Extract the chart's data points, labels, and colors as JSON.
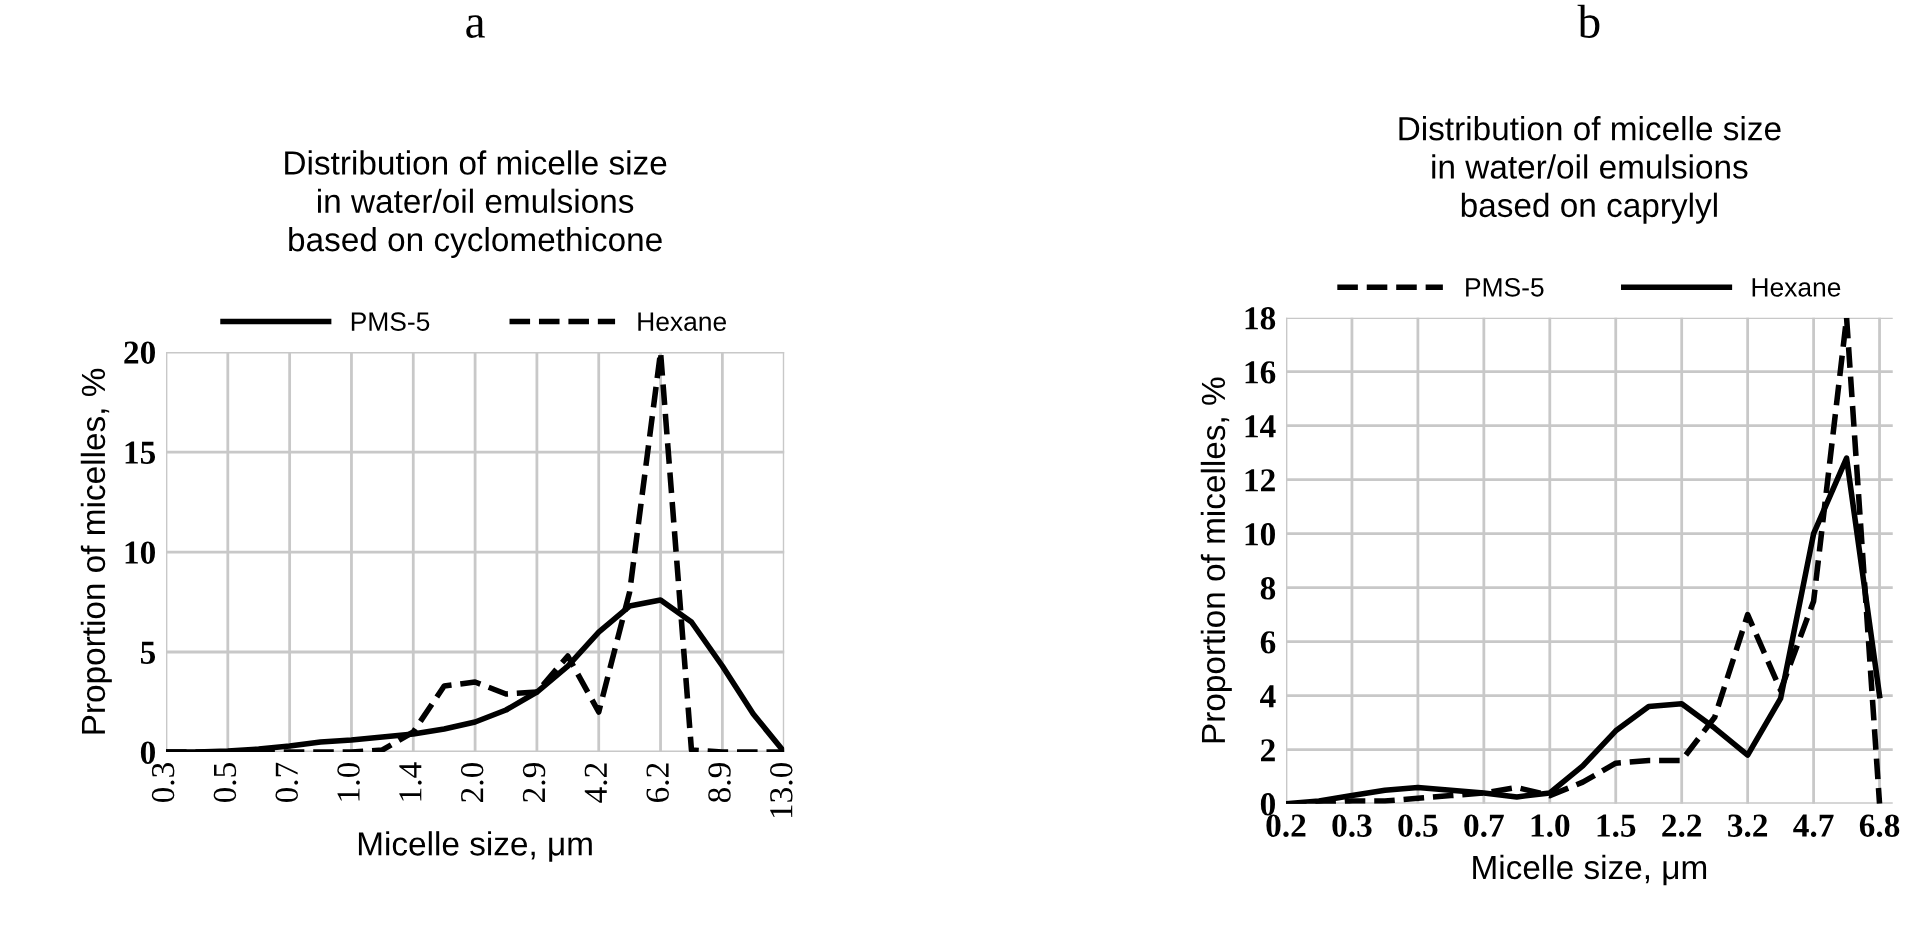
{
  "chart_data": [
    {
      "type": "line",
      "title": "Distribution of micelle size\nin water/oil emulsions\nbased on cyclomethicone",
      "annotations": [
        "a"
      ],
      "xlabel": "Micelle size, μm",
      "ylabel": "Proportion of micelles, %",
      "categories": [
        "0.3",
        null,
        "0.5",
        null,
        "0.7",
        null,
        "1.0",
        null,
        "1.4",
        null,
        "2.0",
        null,
        "2.9",
        null,
        "4.2",
        null,
        "6.2",
        null,
        "8.9",
        null,
        "13.0"
      ],
      "series": [
        {
          "name": "PMS-5",
          "color": "#000000",
          "line_style": "solid",
          "values": [
            0,
            0,
            0.05,
            0.15,
            0.3,
            0.5,
            0.6,
            0.75,
            0.9,
            1.15,
            1.5,
            2.1,
            3.0,
            4.3,
            6.0,
            7.3,
            7.6,
            6.5,
            4.3,
            1.9,
            0
          ]
        },
        {
          "name": "Hexane",
          "color": "#000000",
          "line_style": "dashed",
          "values": [
            0,
            0,
            0,
            0,
            0,
            0,
            0,
            0.1,
            1.0,
            3.3,
            3.5,
            2.9,
            3.0,
            4.8,
            2.0,
            8.0,
            20,
            0.1,
            0,
            0,
            0
          ]
        }
      ],
      "ylim": [
        0,
        20
      ],
      "yticks": [
        0,
        5,
        10,
        15,
        20
      ],
      "grid": true,
      "legend": "top",
      "marker": "none"
    },
    {
      "type": "line",
      "title": "Distribution of micelle size\nin water/oil emulsions\nbased on caprylyl",
      "annotations": [
        "b"
      ],
      "xlabel": "Micelle size, μm",
      "ylabel": "Proportion of micelles, %",
      "categories": [
        "0.2",
        null,
        "0.3",
        null,
        "0.5",
        null,
        "0.7",
        null,
        "1.0",
        null,
        "1.5",
        null,
        "2.2",
        null,
        "3.2",
        null,
        "4.7",
        null,
        "6.8"
      ],
      "series": [
        {
          "name": "PMS-5",
          "color": "#000000",
          "line_style": "dashed",
          "values": [
            0,
            0,
            0.1,
            0.1,
            0.2,
            0.3,
            0.4,
            0.6,
            0.3,
            0.8,
            1.5,
            1.6,
            1.6,
            3.2,
            7.0,
            4.2,
            7.5,
            18,
            0
          ]
        },
        {
          "name": "Hexane",
          "color": "#000000",
          "line_style": "solid",
          "values": [
            0,
            0.1,
            0.3,
            0.5,
            0.6,
            0.5,
            0.4,
            0.25,
            0.4,
            1.4,
            2.7,
            3.6,
            3.7,
            2.8,
            1.8,
            3.9,
            10.0,
            12.8,
            4.0
          ]
        }
      ],
      "ylim": [
        0,
        18
      ],
      "yticks": [
        0,
        2,
        4,
        6,
        8,
        10,
        12,
        14,
        16,
        18
      ],
      "grid": true,
      "legend": "top",
      "marker": "none"
    }
  ]
}
